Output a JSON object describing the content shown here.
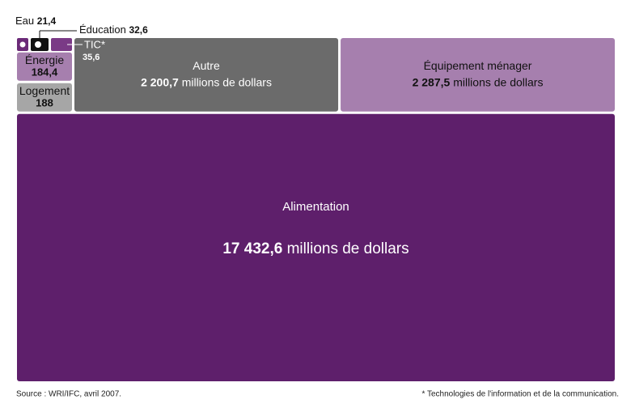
{
  "chart_data": {
    "type": "treemap",
    "categories": [
      "Alimentation",
      "Équipement ménager",
      "Autre",
      "Logement",
      "Énergie",
      "TIC*",
      "Éducation",
      "Eau"
    ],
    "values": [
      17432.6,
      2287.5,
      2200.7,
      188,
      184.4,
      35.6,
      32.6,
      21.4
    ],
    "value_labels": [
      "17 432,6",
      "2 287,5",
      "2 200,7",
      "188",
      "184,4",
      "35,6",
      "32,6",
      "21,4"
    ],
    "colors": [
      "#5e1f6b",
      "#a67fae",
      "#6b6b6b",
      "#a6a6a6",
      "#a67fae",
      "#7a3a86",
      "#111111",
      "#6b2a78"
    ],
    "unit_label": "millions de dollars",
    "source": "Source : WRI/IFC, avril 2007.",
    "note": "* Technologies de l'information et de la communication."
  }
}
